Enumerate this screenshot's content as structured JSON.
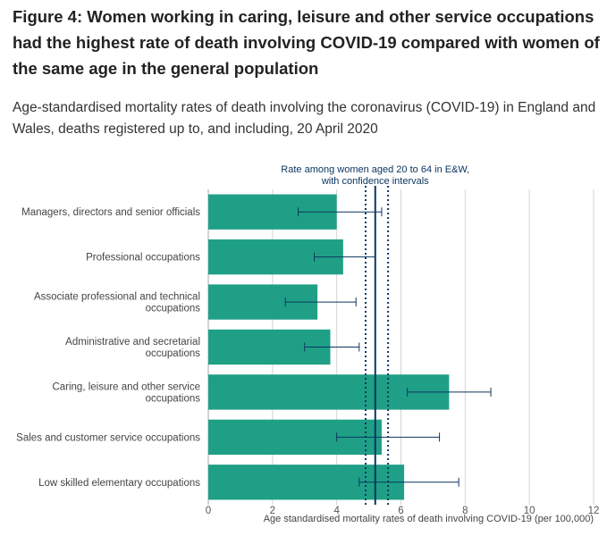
{
  "title": "Figure 4: Women working in caring, leisure and other service occupations had the highest rate of death involving COVID-19 compared with women of the same age in the general population",
  "subtitle": "Age-standardised mortality rates of death involving the coronavirus (COVID-19) in England and Wales, deaths registered up to, and including, 20 April 2020",
  "chart_data": {
    "type": "bar",
    "orientation": "horizontal",
    "categories": [
      [
        "Managers, directors and senior officials"
      ],
      [
        "Professional occupations"
      ],
      [
        "Associate professional and technical",
        "occupations"
      ],
      [
        "Administrative and secretarial",
        "occupations"
      ],
      [
        "Caring, leisure and other service",
        "occupations"
      ],
      [
        "Sales and customer service occupations"
      ],
      [
        "Low skilled elementary occupations"
      ]
    ],
    "values": [
      4.0,
      4.2,
      3.4,
      3.8,
      7.5,
      5.4,
      6.1
    ],
    "ci_lower": [
      2.8,
      3.3,
      2.4,
      3.0,
      6.2,
      4.0,
      4.7
    ],
    "ci_upper": [
      5.4,
      5.2,
      4.6,
      4.7,
      8.8,
      7.2,
      7.8
    ],
    "xlim": [
      0,
      12
    ],
    "xticks": [
      "0",
      "2",
      "4",
      "6",
      "8",
      "10",
      "12"
    ],
    "xlabel": "Age standardised mortality rates of death involving COVID-19 (per 100,000)",
    "grid": true,
    "reference": {
      "label": [
        "Rate among women aged 20 to 64 in E&W,",
        "with confidence intervals"
      ],
      "value": 5.2,
      "ci_lower": 4.9,
      "ci_upper": 5.6
    },
    "colors": {
      "bar": "#1fa086",
      "error_bar": "#0b3660",
      "reference": "#0b3660",
      "grid": "#d4d4d4",
      "axis": "#aaaaaa"
    }
  }
}
